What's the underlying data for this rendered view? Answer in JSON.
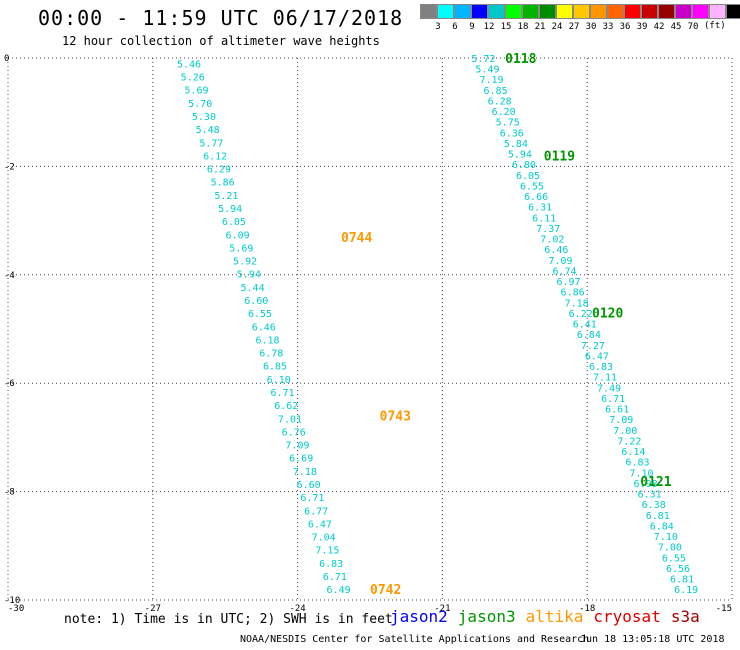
{
  "title": "00:00 - 11:59 UTC 06/17/2018",
  "subtitle": "12 hour collection of altimeter wave heights",
  "legend": {
    "colors": [
      "#808080",
      "#00ffff",
      "#00b4ff",
      "#0000ff",
      "#00c8c8",
      "#00ff00",
      "#00b400",
      "#008c00",
      "#ffff00",
      "#ffc800",
      "#ff9600",
      "#ff6400",
      "#ff0000",
      "#c80000",
      "#960000",
      "#c800c8",
      "#ff00ff",
      "#ffb4ff",
      "#000000"
    ],
    "labels": [
      "3",
      "6",
      "9",
      "12",
      "15",
      "18",
      "21",
      "24",
      "27",
      "30",
      "33",
      "36",
      "39",
      "42",
      "45",
      "70"
    ],
    "unit": "(ft)"
  },
  "axes": {
    "x_ticks": [
      "-30",
      "-27",
      "-24",
      "-21",
      "-18",
      "-15"
    ],
    "y_ticks": [
      "0",
      "-2",
      "-4",
      "-6",
      "-8",
      "-10"
    ]
  },
  "colors": {
    "swh": "#00cccc",
    "jason2": "#0000ff",
    "jason3": "#009600",
    "altika": "#ff9900",
    "cryosat": "#e00000",
    "s3a": "#a00000"
  },
  "tracks": [
    {
      "satellite": "altika",
      "lon_start": -26.5,
      "lat_start": -0.1,
      "lon_end": -23.4,
      "lat_end": -9.8,
      "values": [
        "5.46",
        "5.26",
        "5.69",
        "5.70",
        "5.30",
        "5.48",
        "5.77",
        "6.12",
        "6.29",
        "5.86",
        "5.21",
        "5.94",
        "6.05",
        "6.09",
        "5.69",
        "5.92",
        "5.94",
        "5.44",
        "6.60",
        "6.55",
        "6.46",
        "6.18",
        "6.78",
        "6.85",
        "6.10",
        "6.71",
        "6.62",
        "7.01",
        "6.76",
        "7.09",
        "6.69",
        "7.18",
        "6.60",
        "6.71",
        "6.77",
        "6.47",
        "7.04",
        "7.15",
        "6.83",
        "6.71",
        "6.49"
      ],
      "times": [
        {
          "label": "0744",
          "lon": -23.1,
          "lat": -3.3
        },
        {
          "label": "0743",
          "lon": -22.3,
          "lat": -6.6
        },
        {
          "label": "0742",
          "lon": -22.5,
          "lat": -9.8
        }
      ]
    },
    {
      "satellite": "jason3",
      "lon_start": -20.4,
      "lat_start": 0.0,
      "lon_end": -16.2,
      "lat_end": -9.8,
      "values": [
        "5.72",
        "5.49",
        "7.19",
        "6.85",
        "6.28",
        "6.20",
        "5.75",
        "6.36",
        "5.84",
        "5.94",
        "6.80",
        "6.05",
        "6.55",
        "6.66",
        "6.31",
        "6.11",
        "7.37",
        "7.02",
        "6.46",
        "7.09",
        "6.74",
        "6.97",
        "6.86",
        "7.18",
        "6.22",
        "6.41",
        "6.84",
        "7.27",
        "6.47",
        "6.83",
        "7.11",
        "7.49",
        "6.71",
        "6.61",
        "7.09",
        "7.00",
        "7.22",
        "6.14",
        "6.83",
        "7.10",
        "6.98",
        "6.31",
        "6.38",
        "6.81",
        "6.84",
        "7.10",
        "7.00",
        "6.55",
        "6.56",
        "6.81",
        "6.19"
      ],
      "times": [
        {
          "label": "0118",
          "lon": -19.7,
          "lat": 0.0
        },
        {
          "label": "0119",
          "lon": -18.9,
          "lat": -1.8
        },
        {
          "label": "0120",
          "lon": -17.9,
          "lat": -4.7
        },
        {
          "label": "0121",
          "lon": -16.9,
          "lat": -7.8
        }
      ]
    }
  ],
  "note": "note: 1) Time is in UTC; 2) SWH is in feet",
  "satellites": [
    "jason2",
    "jason3",
    "altika",
    "cryosat",
    "s3a"
  ],
  "footer_left": "NOAA/NESDIS Center for Satellite Applications and Research",
  "footer_right": "Jun 18 13:05:18 UTC 2018"
}
